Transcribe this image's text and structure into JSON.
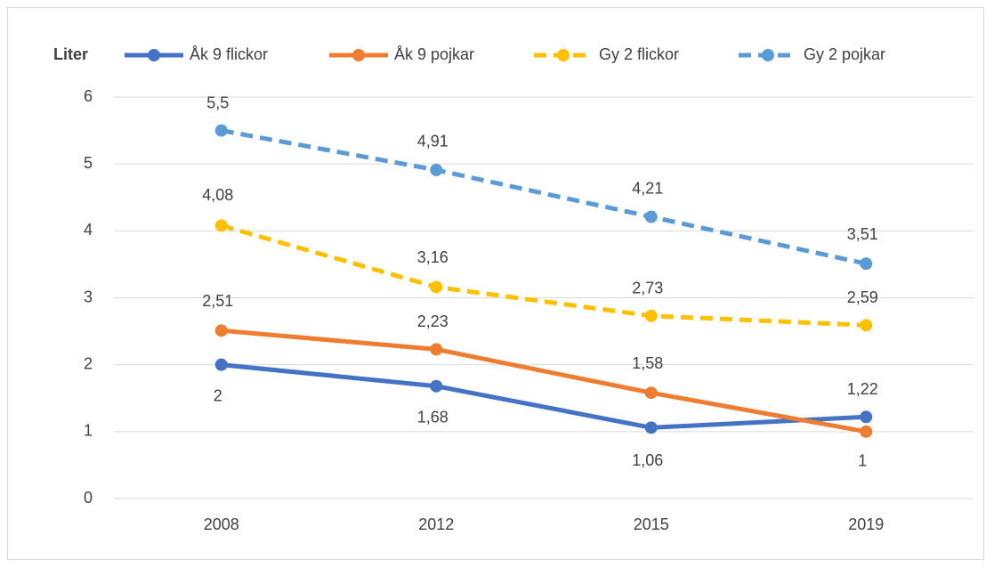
{
  "chart_data": {
    "type": "line",
    "y_label": "Liter",
    "categories": [
      "2008",
      "2012",
      "2015",
      "2019"
    ],
    "series": [
      {
        "name": "Åk 9 flickor",
        "color": "#4472c4",
        "dashed": false,
        "values": [
          2,
          1.68,
          1.06,
          1.22
        ],
        "value_labels": [
          "2",
          "1,68",
          "1,06",
          "1,22"
        ]
      },
      {
        "name": "Åk 9 pojkar",
        "color": "#ed7d31",
        "dashed": false,
        "values": [
          2.51,
          2.23,
          1.58,
          1
        ],
        "value_labels": [
          "2,51",
          "2,23",
          "1,58",
          "1"
        ]
      },
      {
        "name": "Gy 2 flickor",
        "color": "#ffc000",
        "dashed": true,
        "values": [
          4.08,
          3.16,
          2.73,
          2.59
        ],
        "value_labels": [
          "4,08",
          "3,16",
          "2,73",
          "2,59"
        ]
      },
      {
        "name": "Gy 2 pojkar",
        "color": "#5b9bd5",
        "dashed": true,
        "values": [
          5.5,
          4.91,
          4.21,
          3.51
        ],
        "value_labels": [
          "5,5",
          "4,91",
          "4,21",
          "3,51"
        ]
      }
    ],
    "ylim": [
      0,
      6
    ],
    "yticks": [
      0,
      1,
      2,
      3,
      4,
      5,
      6
    ],
    "grid": true,
    "legend": "top"
  }
}
